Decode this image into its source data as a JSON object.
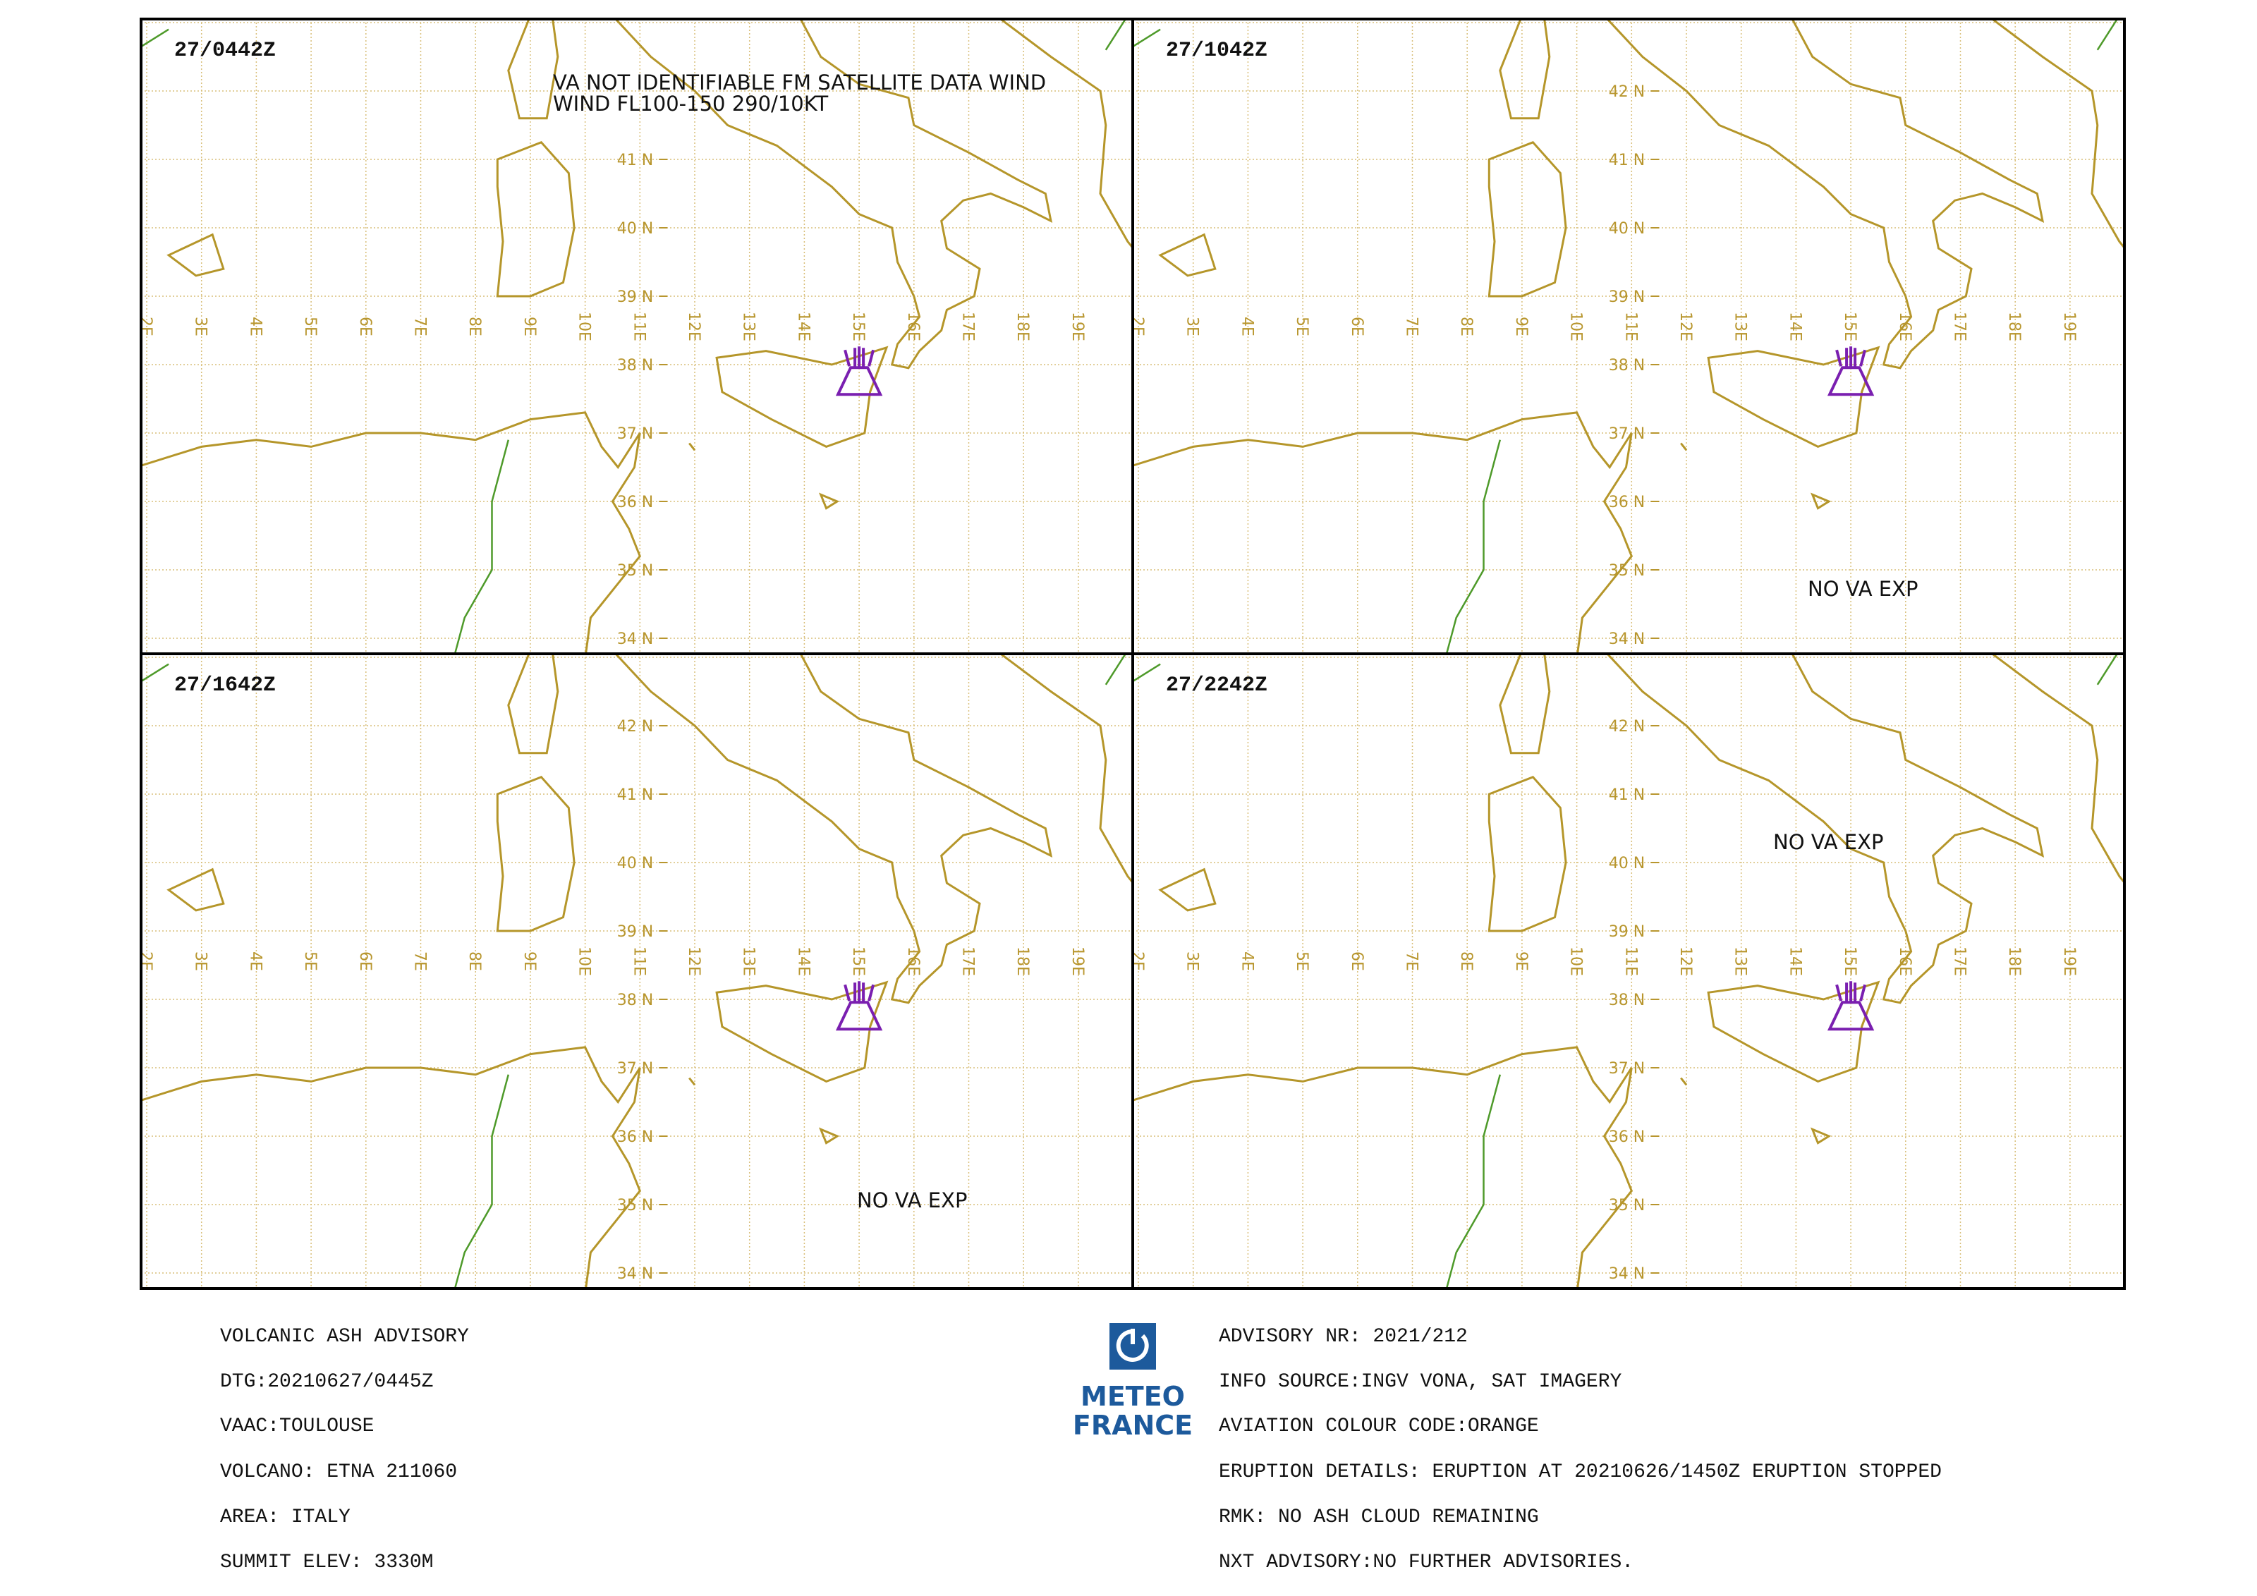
{
  "panels": [
    {
      "time": "27/0442Z",
      "annotation": [
        "VA NOT IDENTIFIABLE FM SATELLITE DATA WIND",
        "WIND FL100-150 290/10KT"
      ],
      "lat_labels": [
        "41 N",
        "40 N",
        "39 N",
        "38 N",
        "37 N",
        "36 N",
        "35 N",
        "34 N"
      ]
    },
    {
      "time": "27/1042Z",
      "annotation": [
        "NO VA EXP"
      ],
      "lat_labels": [
        "42 N",
        "41 N",
        "40 N",
        "39 N",
        "38 N",
        "37 N",
        "36 N",
        "35 N",
        "34 N"
      ]
    },
    {
      "time": "27/1642Z",
      "annotation": [
        "NO VA EXP"
      ],
      "lat_labels": [
        "42 N",
        "41 N",
        "40 N",
        "39 N",
        "38 N",
        "37 N",
        "36 N",
        "35 N",
        "34 N"
      ]
    },
    {
      "time": "27/2242Z",
      "annotation": [
        "NO VA EXP"
      ],
      "lat_labels": [
        "42 N",
        "41 N",
        "40 N",
        "39 N",
        "38 N",
        "37 N",
        "36 N",
        "35 N",
        "34 N"
      ]
    }
  ],
  "lon_labels": [
    "2E",
    "3E",
    "4E",
    "5E",
    "6E",
    "7E",
    "8E",
    "9E",
    "10E",
    "11E",
    "12E",
    "13E",
    "14E",
    "15E",
    "16E",
    "17E",
    "18E",
    "19E"
  ],
  "footer": {
    "left": [
      "VOLCANIC ASH ADVISORY",
      "DTG:20210627/0445Z",
      "VAAC:TOULOUSE",
      "VOLCANO: ETNA 211060",
      "AREA: ITALY",
      "SUMMIT ELEV: 3330M"
    ],
    "right": [
      "ADVISORY NR: 2021/212",
      "INFO SOURCE:INGV VONA, SAT IMAGERY",
      "AVIATION COLOUR CODE:ORANGE",
      "ERUPTION DETAILS: ERUPTION AT 20210626/1450Z ERUPTION STOPPED",
      "RMK: NO ASH CLOUD REMAINING",
      "NXT ADVISORY:NO FURTHER ADVISORIES."
    ]
  },
  "logo": [
    "METEO",
    "FRANCE"
  ]
}
